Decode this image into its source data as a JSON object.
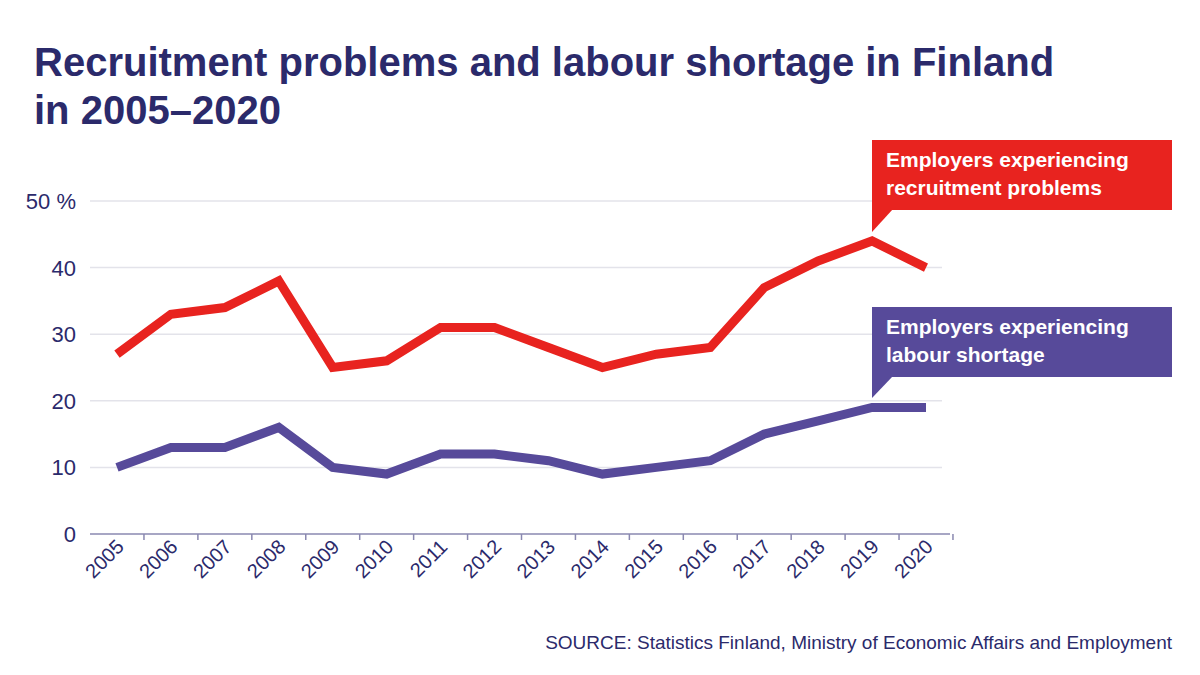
{
  "chart_data": {
    "type": "line",
    "title": "Recruitment problems and labour shortage in Finland in 2005–2020",
    "source": "SOURCE: Statistics Finland, Ministry of Economic Affairs and Employment",
    "categories": [
      "2005",
      "2006",
      "2007",
      "2008",
      "2009",
      "2010",
      "2011",
      "2012",
      "2013",
      "2014",
      "2015",
      "2016",
      "2017",
      "2018",
      "2019",
      "2020"
    ],
    "series": [
      {
        "name": "Employers experiencing recruitment problems",
        "color": "#e8231f",
        "values": [
          27,
          33,
          34,
          38,
          25,
          26,
          31,
          31,
          28,
          25,
          27,
          28,
          37,
          41,
          44,
          40
        ]
      },
      {
        "name": "Employers experiencing labour shortage",
        "color": "#574a9a",
        "values": [
          10,
          13,
          13,
          16,
          10,
          9,
          12,
          12,
          11,
          9,
          10,
          11,
          15,
          17,
          19,
          19
        ]
      }
    ],
    "ylim": [
      0,
      50
    ],
    "yticks": [
      0,
      10,
      20,
      30,
      40,
      {
        "value": 50,
        "label": "50 %"
      }
    ],
    "grid": true
  }
}
